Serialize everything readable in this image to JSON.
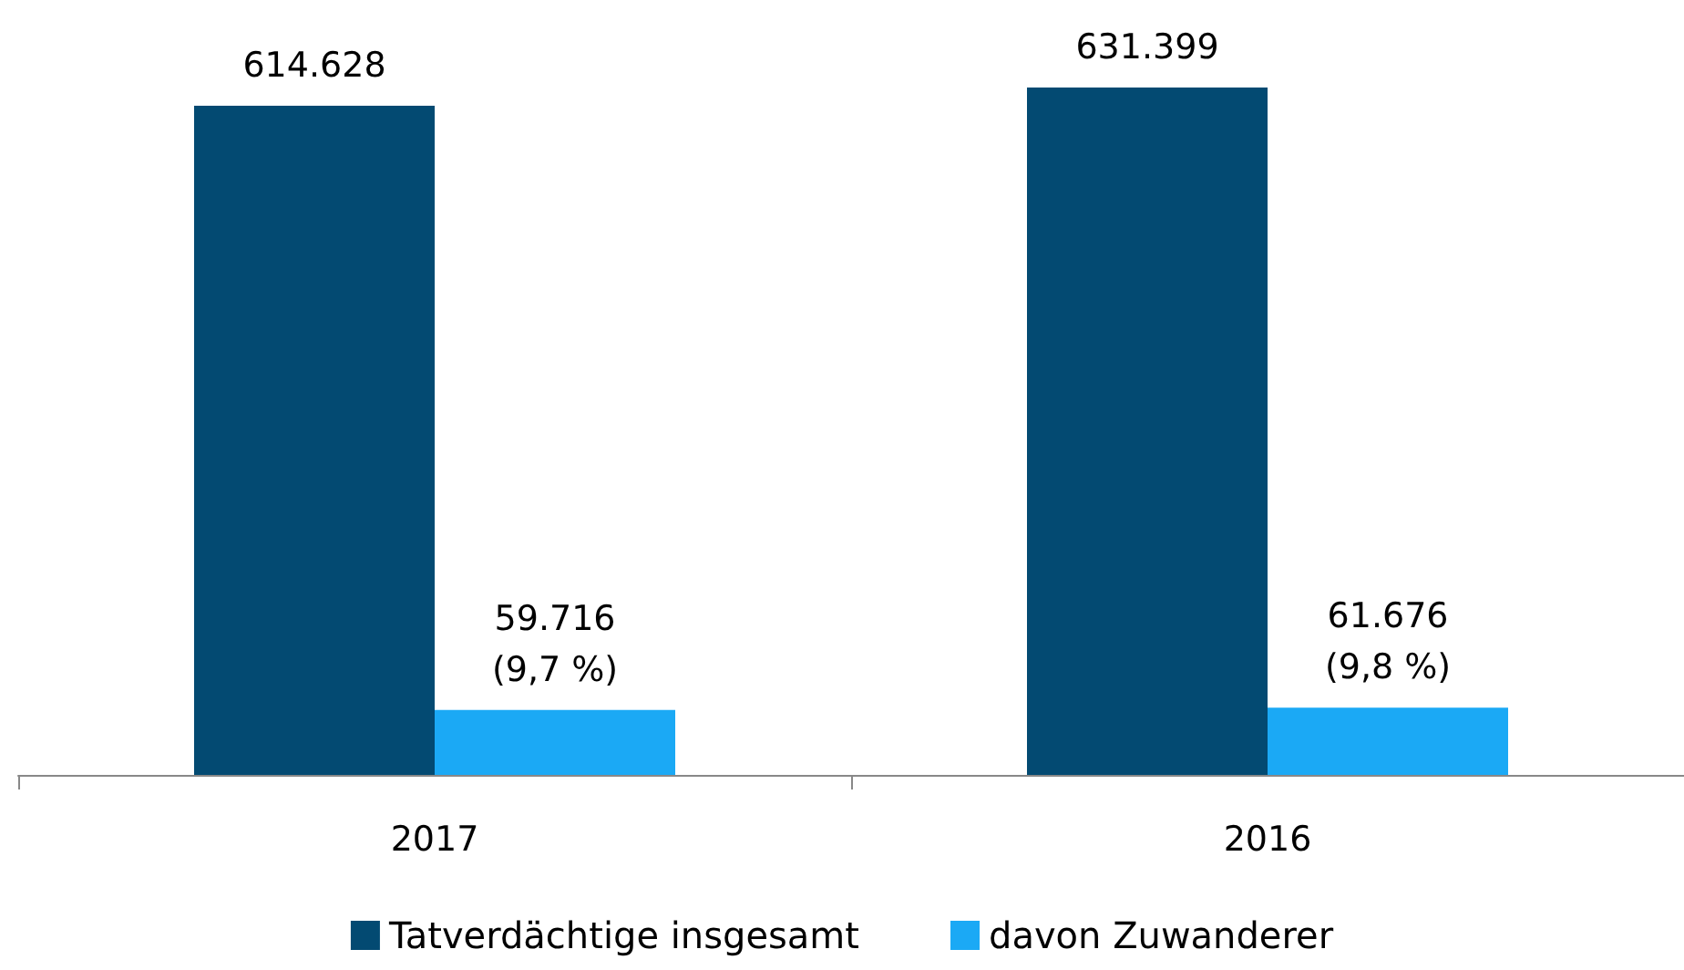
{
  "chart_data": {
    "type": "bar",
    "categories": [
      "2017",
      "2016"
    ],
    "series": [
      {
        "name": "Tatverdächtige insgesamt",
        "color": "#034a72",
        "values": [
          614628,
          631399
        ],
        "value_labels": [
          "614.628",
          "631.399"
        ]
      },
      {
        "name": "davon Zuwanderer",
        "color": "#1ba9f5",
        "values": [
          59716,
          61676
        ],
        "value_labels": [
          "59.716\n(9,7 %)",
          "61.676\n(9,8 %)"
        ]
      }
    ],
    "legend": "bottom"
  }
}
